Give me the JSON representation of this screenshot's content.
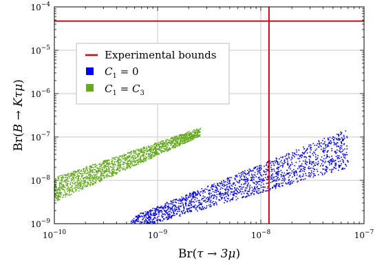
{
  "chart_data": {
    "type": "scatter",
    "x_scale": "log",
    "y_scale": "log",
    "xlim": [
      1e-10,
      1e-07
    ],
    "ylim": [
      1e-09,
      0.0001
    ],
    "xlabel_text": "Br(",
    "xlabel_math": "τ → 3μ",
    "xlabel_close": ")",
    "ylabel_text": "Br(",
    "ylabel_math": "B → Kτμ",
    "ylabel_close": ")",
    "x_ticks": [
      {
        "value": 1e-10,
        "base": "10",
        "exp": "−10"
      },
      {
        "value": 1e-09,
        "base": "10",
        "exp": "−9"
      },
      {
        "value": 1e-08,
        "base": "10",
        "exp": "−8"
      },
      {
        "value": 1e-07,
        "base": "10",
        "exp": "−7"
      }
    ],
    "y_ticks": [
      {
        "value": 1e-09,
        "base": "10",
        "exp": "−9"
      },
      {
        "value": 1e-08,
        "base": "10",
        "exp": "−8"
      },
      {
        "value": 1e-07,
        "base": "10",
        "exp": "−7"
      },
      {
        "value": 1e-06,
        "base": "10",
        "exp": "−6"
      },
      {
        "value": 1e-05,
        "base": "10",
        "exp": "−5"
      },
      {
        "value": 0.0001,
        "base": "10",
        "exp": "−4"
      }
    ],
    "grid": true,
    "legend_position": "upper-left",
    "experimental_bounds": {
      "label": "Experimental bounds",
      "color": "#dd0000",
      "x": 1.2e-08,
      "y": 4.7e-05
    },
    "series": [
      {
        "name_var": "C",
        "name_sub": "1",
        "name_rest": " = 0",
        "color": "#0000ee",
        "region": {
          "x_range": [
            5.5e-10,
            7e-08
          ],
          "center_line": [
            [
              5.5e-10,
              1e-09
            ],
            [
              7e-08,
              5.5e-08
            ]
          ],
          "spread_dex": [
            0.15,
            0.45
          ],
          "y_min": 1e-09
        }
      },
      {
        "name_var": "C",
        "name_sub": "1",
        "name_rest": " = ",
        "name_var2": "C",
        "name_sub2": "3",
        "color": "#66aa22",
        "region": {
          "x_range": [
            1e-10,
            2.6e-09
          ],
          "center_line": [
            [
              1e-10,
              6e-09
            ],
            [
              2.6e-09,
              1.3e-07
            ]
          ],
          "spread_dex": [
            0.28,
            0.1
          ],
          "y_min": 1e-09
        }
      }
    ]
  }
}
